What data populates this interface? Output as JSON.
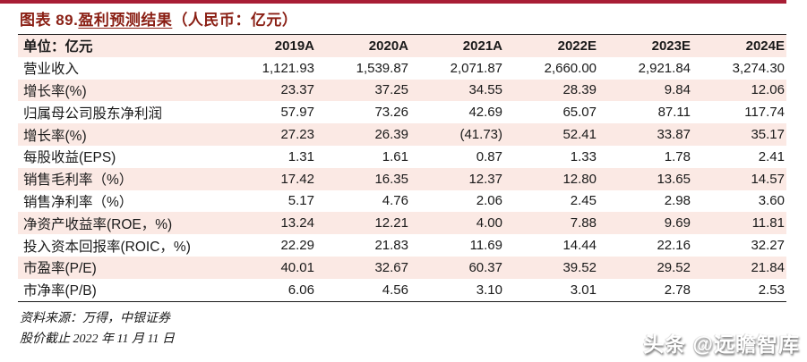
{
  "title": {
    "prefix": "图表 89.",
    "underlined": "盈利预测结果",
    "suffix": "（人民币：亿元）"
  },
  "table": {
    "header": {
      "label": "单位：亿元",
      "columns": [
        "2019A",
        "2020A",
        "2021A",
        "2022E",
        "2023E",
        "2024E"
      ]
    },
    "rows": [
      {
        "label": "营业收入",
        "values": [
          "1,121.93",
          "1,539.87",
          "2,071.87",
          "2,660.00",
          "2,921.84",
          "3,274.30"
        ]
      },
      {
        "label": "增长率(%)",
        "values": [
          "23.37",
          "37.25",
          "34.55",
          "28.39",
          "9.84",
          "12.06"
        ]
      },
      {
        "label": "归属母公司股东净利润",
        "values": [
          "57.97",
          "73.26",
          "42.69",
          "65.07",
          "87.11",
          "117.74"
        ]
      },
      {
        "label": "增长率(%)",
        "values": [
          "27.23",
          "26.39",
          "(41.73)",
          "52.41",
          "33.87",
          "35.17"
        ]
      },
      {
        "label": "每股收益(EPS)",
        "values": [
          "1.31",
          "1.61",
          "0.87",
          "1.33",
          "1.78",
          "2.41"
        ]
      },
      {
        "label": "销售毛利率（%）",
        "values": [
          "17.42",
          "16.35",
          "12.37",
          "12.80",
          "13.65",
          "14.57"
        ]
      },
      {
        "label": "销售净利率（%）",
        "values": [
          "5.17",
          "4.76",
          "2.06",
          "2.45",
          "2.98",
          "3.60"
        ]
      },
      {
        "label": "净资产收益率(ROE，%)",
        "values": [
          "13.24",
          "12.21",
          "4.00",
          "7.88",
          "9.69",
          "11.81"
        ]
      },
      {
        "label": "投入资本回报率(ROIC，%)",
        "values": [
          "22.29",
          "21.83",
          "11.69",
          "14.44",
          "22.16",
          "32.27"
        ]
      },
      {
        "label": "市盈率(P/E)",
        "values": [
          "40.01",
          "32.67",
          "60.37",
          "39.52",
          "29.52",
          "21.84"
        ]
      },
      {
        "label": "市净率(P/B)",
        "values": [
          "6.06",
          "4.56",
          "3.10",
          "3.01",
          "2.78",
          "2.53"
        ]
      }
    ]
  },
  "footer": {
    "source": "资料来源：万得，中银证券",
    "note": "股价截止 2022 年 11 月 11 日"
  },
  "watermark": "头条 @远瞻智库",
  "colors": {
    "accent_bar": "#a81e35",
    "title_text": "#8a1f14",
    "row_stripe": "#fbe9e4",
    "rule": "#1a1a1a"
  },
  "chart_data": {
    "type": "table",
    "title": "图表 89.盈利预测结果（人民币：亿元）",
    "columns": [
      "单位：亿元",
      "2019A",
      "2020A",
      "2021A",
      "2022E",
      "2023E",
      "2024E"
    ],
    "rows": [
      [
        "营业收入",
        1121.93,
        1539.87,
        2071.87,
        2660.0,
        2921.84,
        3274.3
      ],
      [
        "增长率(%)",
        23.37,
        37.25,
        34.55,
        28.39,
        9.84,
        12.06
      ],
      [
        "归属母公司股东净利润",
        57.97,
        73.26,
        42.69,
        65.07,
        87.11,
        117.74
      ],
      [
        "增长率(%)",
        27.23,
        26.39,
        -41.73,
        52.41,
        33.87,
        35.17
      ],
      [
        "每股收益(EPS)",
        1.31,
        1.61,
        0.87,
        1.33,
        1.78,
        2.41
      ],
      [
        "销售毛利率（%）",
        17.42,
        16.35,
        12.37,
        12.8,
        13.65,
        14.57
      ],
      [
        "销售净利率（%）",
        5.17,
        4.76,
        2.06,
        2.45,
        2.98,
        3.6
      ],
      [
        "净资产收益率(ROE，%)",
        13.24,
        12.21,
        4.0,
        7.88,
        9.69,
        11.81
      ],
      [
        "投入资本回报率(ROIC，%)",
        22.29,
        21.83,
        11.69,
        14.44,
        22.16,
        32.27
      ],
      [
        "市盈率(P/E)",
        40.01,
        32.67,
        60.37,
        39.52,
        29.52,
        21.84
      ],
      [
        "市净率(P/B)",
        6.06,
        4.56,
        3.1,
        3.01,
        2.78,
        2.53
      ]
    ]
  }
}
